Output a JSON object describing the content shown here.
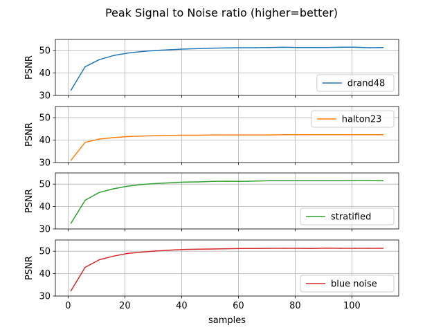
{
  "chart_data": {
    "type": "line",
    "title": "Peak Signal to Noise ratio (higher=better)",
    "xlabel": "samples",
    "ylabel": "PSNR",
    "xlim": [
      -4.5,
      116.5
    ],
    "ylim": [
      30,
      55
    ],
    "x_ticks": [
      0,
      20,
      40,
      60,
      80,
      100
    ],
    "y_ticks": [
      30,
      40,
      50
    ],
    "grid": true,
    "legend_position": "right",
    "x": [
      1,
      6,
      11,
      16,
      21,
      26,
      31,
      36,
      41,
      46,
      51,
      56,
      61,
      66,
      71,
      76,
      81,
      86,
      91,
      96,
      101,
      106,
      111
    ],
    "series": [
      {
        "name": "drand48",
        "color": "#1f77b4",
        "legend_loc": "lower-right",
        "values": [
          32.3,
          42.8,
          46.0,
          47.8,
          48.9,
          49.6,
          50.1,
          50.4,
          50.7,
          50.9,
          51.1,
          51.2,
          51.3,
          51.3,
          51.4,
          51.5,
          51.4,
          51.4,
          51.4,
          51.5,
          51.5,
          51.3,
          51.4
        ]
      },
      {
        "name": "halton23",
        "color": "#ff7f0e",
        "legend_loc": "upper-right",
        "values": [
          31.0,
          39.0,
          40.5,
          41.1,
          41.6,
          41.8,
          42.0,
          42.1,
          42.2,
          42.2,
          42.3,
          42.3,
          42.3,
          42.3,
          42.3,
          42.4,
          42.4,
          42.4,
          42.4,
          42.4,
          42.4,
          42.4,
          42.4
        ]
      },
      {
        "name": "stratified",
        "color": "#2ca02c",
        "legend_loc": "lower-right",
        "values": [
          32.5,
          42.8,
          46.3,
          47.9,
          49.1,
          49.8,
          50.3,
          50.6,
          50.9,
          51.0,
          51.2,
          51.3,
          51.2,
          51.4,
          51.5,
          51.5,
          51.5,
          51.5,
          51.5,
          51.5,
          51.6,
          51.6,
          51.5
        ]
      },
      {
        "name": "blue noise",
        "color": "#d62728",
        "legend_loc": "lower-right",
        "values": [
          32.3,
          42.8,
          46.2,
          47.8,
          49.0,
          49.6,
          50.1,
          50.5,
          50.8,
          50.9,
          51.0,
          51.1,
          51.2,
          51.2,
          51.3,
          51.3,
          51.3,
          51.2,
          51.4,
          51.3,
          51.3,
          51.3,
          51.3
        ]
      }
    ]
  }
}
